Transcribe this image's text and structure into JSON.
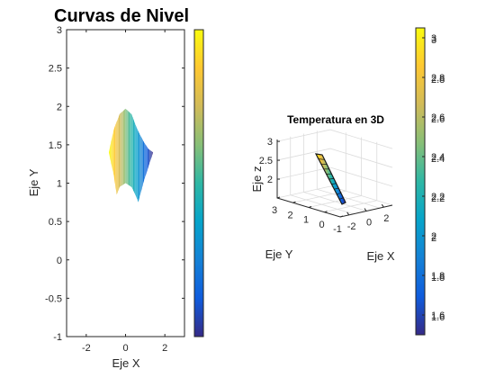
{
  "chart_data": [
    {
      "type": "contour",
      "title": "Curvas de Nivel",
      "xlabel": "Eje X",
      "ylabel": "Eje Y",
      "xlim": [
        -3,
        3
      ],
      "ylim": [
        -1,
        3
      ],
      "xticks": [
        -2,
        0,
        2
      ],
      "yticks": [
        -1,
        -0.5,
        0,
        0.5,
        1,
        1.5,
        2,
        2.5,
        3
      ],
      "region": {
        "x_range": [
          -0.85,
          1.4
        ],
        "upper_boundary": [
          [
            -0.85,
            1.4
          ],
          [
            -0.6,
            1.7
          ],
          [
            -0.3,
            1.9
          ],
          [
            0,
            1.97
          ],
          [
            0.3,
            1.9
          ],
          [
            0.6,
            1.7
          ],
          [
            0.9,
            1.55
          ],
          [
            1.15,
            1.45
          ],
          [
            1.4,
            1.4
          ]
        ],
        "lower_boundary": [
          [
            -0.85,
            1.4
          ],
          [
            -0.6,
            1.1
          ],
          [
            -0.45,
            0.85
          ],
          [
            -0.3,
            0.95
          ],
          [
            0,
            1.0
          ],
          [
            0.3,
            0.95
          ],
          [
            0.5,
            0.85
          ],
          [
            0.65,
            0.75
          ],
          [
            0.9,
            1.0
          ],
          [
            1.15,
            1.2
          ],
          [
            1.4,
            1.4
          ]
        ],
        "value_left": 3.05,
        "value_right": 1.5
      },
      "colorbar": {
        "colormap": "parula",
        "range": [
          1.5,
          3.05
        ],
        "ticks": [
          1.6,
          1.8,
          2,
          2.2,
          2.4,
          2.6,
          2.8,
          3
        ]
      }
    },
    {
      "type": "surface3d",
      "title": "Temperatura en 3D",
      "xlabel": "Eje X",
      "ylabel": "Eje Y",
      "zlabel": "Eje z",
      "xlim": [
        -3,
        3
      ],
      "ylim": [
        -1,
        3
      ],
      "zlim": [
        1.5,
        3.05
      ],
      "xticks": [
        -2,
        0,
        2
      ],
      "yticks": [
        -1,
        0,
        1,
        2,
        3
      ],
      "zticks": [
        2,
        2.5,
        3
      ],
      "colorbar": {
        "colormap": "parula",
        "range": [
          1.5,
          3.05
        ],
        "ticks": [
          1.6,
          1.8,
          2,
          2.2,
          2.4,
          2.6,
          2.8,
          3
        ]
      }
    }
  ],
  "colors": {
    "parula": [
      "#352a87",
      "#0f5cdd",
      "#1481d6",
      "#06a4ca",
      "#2eb7a4",
      "#87bf77",
      "#d1bb59",
      "#fec832",
      "#f9fb0e"
    ]
  }
}
